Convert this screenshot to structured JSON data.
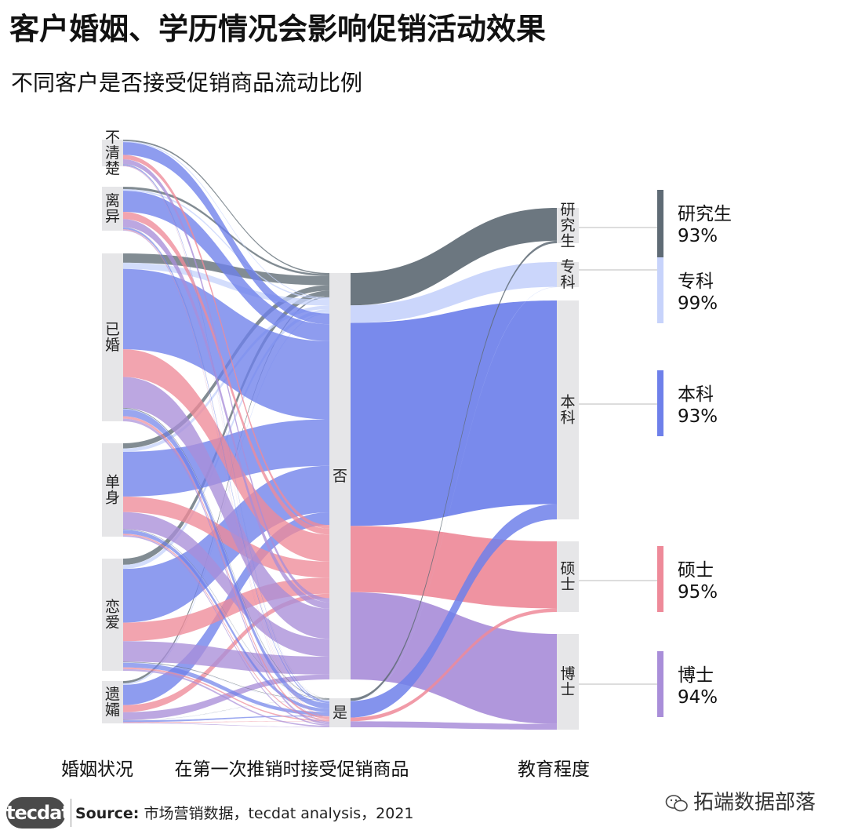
{
  "title": "客户婚姻、学历情况会影响促销活动效果",
  "subtitle": "不同客户是否接受促销商品流动比例",
  "footer": {
    "logo": "tecdat",
    "source_label": "Source:",
    "source_text": "市场营销数据，tecdat analysis，2021",
    "watermark": "拓端数据部落"
  },
  "chart_data": {
    "type": "sankey",
    "axis_labels": [
      "婚姻状况",
      "在第一次推销时接受促销商品",
      "教育程度"
    ],
    "marital": [
      "不清楚",
      "离异",
      "已婚",
      "单身",
      "恋爱",
      "遗孀"
    ],
    "accept": [
      "否",
      "是"
    ],
    "education": [
      "研究生",
      "专科",
      "本科",
      "硕士",
      "博士"
    ],
    "education_colors": [
      "#5f6b75",
      "#c7d3fb",
      "#6e80ea",
      "#ee8a99",
      "#a98ed9"
    ],
    "flows_accept_to_education": [
      {
        "from": "否",
        "to": "研究生",
        "value": 93
      },
      {
        "from": "否",
        "to": "专科",
        "value": 99
      },
      {
        "from": "否",
        "to": "本科",
        "value": 93
      },
      {
        "from": "否",
        "to": "硕士",
        "value": 95
      },
      {
        "from": "否",
        "to": "博士",
        "value": 94
      },
      {
        "from": "是",
        "to": "研究生",
        "value": 7
      },
      {
        "from": "是",
        "to": "专科",
        "value": 1
      },
      {
        "from": "是",
        "to": "本科",
        "value": 7
      },
      {
        "from": "是",
        "to": "硕士",
        "value": 5
      },
      {
        "from": "是",
        "to": "博士",
        "value": 6
      }
    ],
    "legend": [
      {
        "label": "研究生",
        "value": "93%",
        "color": "#5f6b75"
      },
      {
        "label": "专科",
        "value": "99%",
        "color": "#c7d3fb"
      },
      {
        "label": "本科",
        "value": "93%",
        "color": "#6e80ea"
      },
      {
        "label": "硕士",
        "value": "95%",
        "color": "#ee8a99"
      },
      {
        "label": "博士",
        "value": "94%",
        "color": "#a98ed9"
      }
    ]
  }
}
